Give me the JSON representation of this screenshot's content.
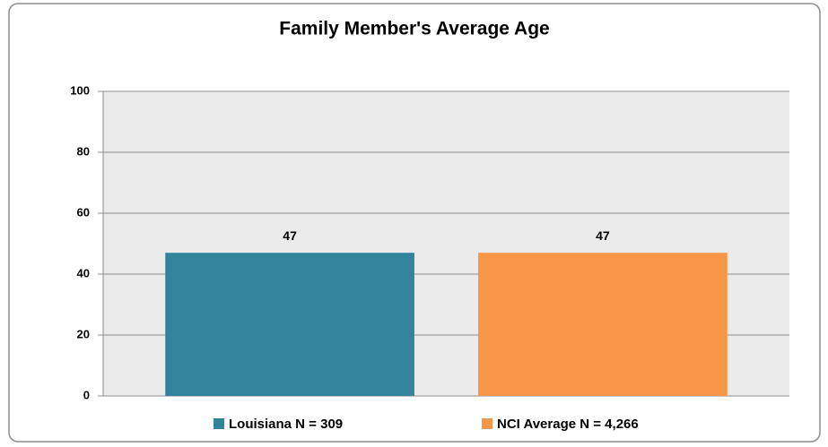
{
  "chart_data": {
    "type": "bar",
    "title": "Family Member's Average Age",
    "categories": [
      null
    ],
    "series": [
      {
        "name": "Louisiana N = 309",
        "color": "#31849b",
        "values": [
          47
        ]
      },
      {
        "name": "NCI Average N = 4,266",
        "color": "#f79646",
        "values": [
          47
        ]
      }
    ],
    "ylim": [
      0,
      100
    ],
    "yticks": [
      0,
      20,
      40,
      60,
      80,
      100
    ],
    "grid": true,
    "legend": "bottom"
  }
}
